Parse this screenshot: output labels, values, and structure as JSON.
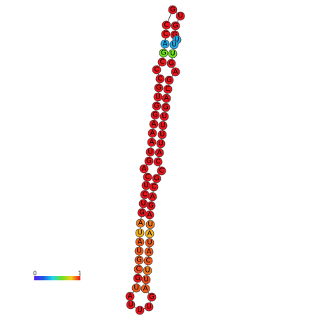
{
  "nodes": [
    {
      "label": "A",
      "color": "#e8141c"
    },
    {
      "label": "U",
      "color": "#ee5a1c"
    },
    {
      "label": "G",
      "color": "#e8141c"
    },
    {
      "label": "C",
      "color": "#ec4a1c"
    },
    {
      "label": "G",
      "color": "#ee5a1c"
    },
    {
      "label": "U",
      "color": "#ee5a1c"
    },
    {
      "label": "A",
      "color": "#ee5a1c"
    },
    {
      "label": "U",
      "color": "#f4b01c"
    },
    {
      "label": "A",
      "color": "#f0781c"
    },
    {
      "label": "G",
      "color": "#e8141c"
    },
    {
      "label": "U",
      "color": "#e8141c"
    },
    {
      "label": "C",
      "color": "#e8141c"
    },
    {
      "label": "U",
      "color": "#e8141c"
    },
    {
      "label": "C",
      "color": "#e8141c"
    },
    {
      "label": "A",
      "color": "#e8141c"
    },
    {
      "label": "G",
      "color": "#e8141c"
    },
    {
      "label": "U",
      "color": "#e8141c"
    },
    {
      "label": "A",
      "color": "#e8141c"
    },
    {
      "label": "A",
      "color": "#e8141c"
    },
    {
      "label": "A",
      "color": "#e8141c"
    },
    {
      "label": "G",
      "color": "#e8141c"
    },
    {
      "label": "G",
      "color": "#e8141c"
    },
    {
      "label": "U",
      "color": "#e8141c"
    },
    {
      "label": "G",
      "color": "#e8141c"
    },
    {
      "label": "C",
      "color": "#e8141c"
    },
    {
      "label": "C",
      "color": "#e8141c"
    },
    {
      "label": "C",
      "color": "#e8141c"
    },
    {
      "label": "G",
      "color": "#6ee01e"
    },
    {
      "label": "A",
      "color": "#1fa8e8"
    },
    {
      "label": "C",
      "color": "#e8141c"
    },
    {
      "label": "C",
      "color": "#e8141c"
    },
    {
      "label": "G",
      "color": "#e8141c"
    },
    {
      "label": "U",
      "color": "#e8141c"
    },
    {
      "label": "G",
      "color": "#e8141c"
    },
    {
      "label": "G",
      "color": "#e8141c"
    },
    {
      "label": "U",
      "color": "#1fa8e8"
    },
    {
      "label": "U",
      "color": "#1fa8e8"
    },
    {
      "label": "U",
      "color": "#6ee01e"
    },
    {
      "label": "G",
      "color": "#e8141c"
    },
    {
      "label": "A",
      "color": "#e8141c"
    },
    {
      "label": "G",
      "color": "#e8141c"
    },
    {
      "label": "C",
      "color": "#e8141c"
    },
    {
      "label": "A",
      "color": "#e8141c"
    },
    {
      "label": "G",
      "color": "#e8141c"
    },
    {
      "label": "U",
      "color": "#e8141c"
    },
    {
      "label": "U",
      "color": "#e8141c"
    },
    {
      "label": "U",
      "color": "#e8141c"
    },
    {
      "label": "U",
      "color": "#e8141c"
    },
    {
      "label": "A",
      "color": "#e8141c"
    },
    {
      "label": "C",
      "color": "#e8141c"
    },
    {
      "label": "C",
      "color": "#e8141c"
    },
    {
      "label": "G",
      "color": "#e8141c"
    },
    {
      "label": "C",
      "color": "#e8141c"
    },
    {
      "label": "A",
      "color": "#e8141c"
    },
    {
      "label": "G",
      "color": "#e8141c"
    },
    {
      "label": "A",
      "color": "#e8141c"
    },
    {
      "label": "U",
      "color": "#f0781c"
    },
    {
      "label": "A",
      "color": "#f4b01c"
    },
    {
      "label": "U",
      "color": "#ee5a1c"
    },
    {
      "label": "A",
      "color": "#ee5a1c"
    },
    {
      "label": "C",
      "color": "#ee5a1c"
    },
    {
      "label": "U",
      "color": "#f0781c"
    },
    {
      "label": "U",
      "color": "#ec4a1c"
    },
    {
      "label": "A",
      "color": "#ee5a1c"
    },
    {
      "label": "G",
      "color": "#e8141c"
    },
    {
      "label": "U",
      "color": "#e8141c"
    },
    {
      "label": "U",
      "color": "#e8141c"
    },
    {
      "label": "U",
      "color": "#e8141c"
    }
  ],
  "colorbar": {
    "min_label": "0",
    "max_label": "1"
  }
}
